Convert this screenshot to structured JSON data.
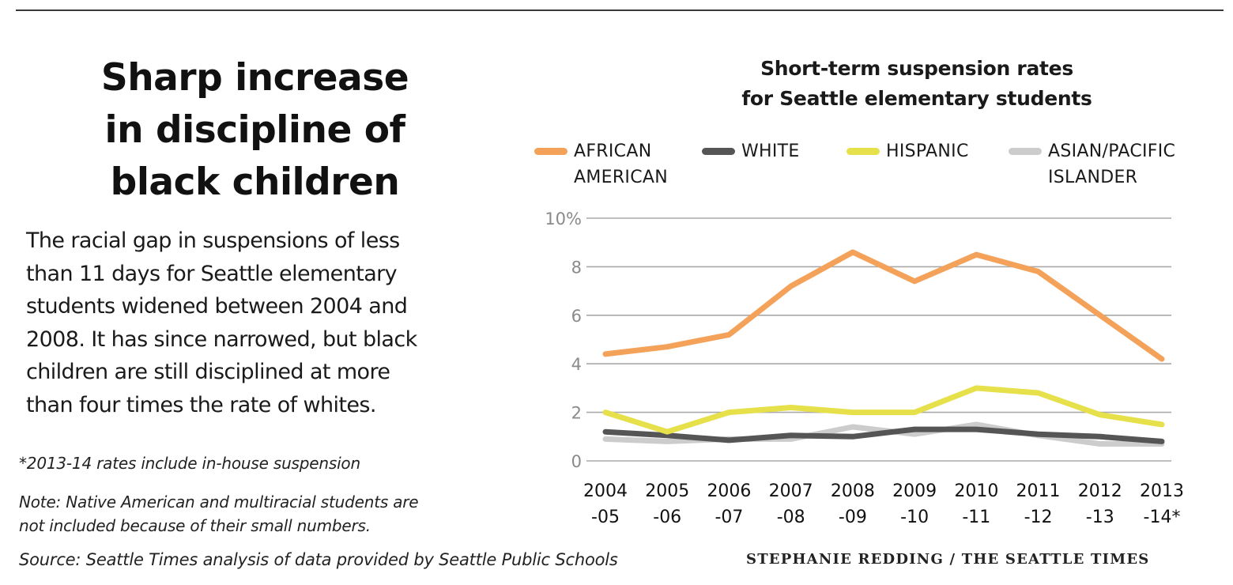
{
  "headline": [
    "Sharp increase",
    "in discipline of",
    "black children"
  ],
  "body": [
    "The racial gap in suspensions of less",
    "than 11 days for Seattle elementary",
    "students widened between 2004 and",
    "2008. It has since narrowed, but black",
    "children are still disciplined at more",
    "than four times the rate of whites."
  ],
  "footnote": "*2013-14 rates include in-house suspension",
  "note": [
    "Note: Native American and multiracial students are",
    "not included because of their small numbers."
  ],
  "source": "Source: Seattle Times analysis of data provided by Seattle Public Schools",
  "credit": "STEPHANIE REDDING / THE SEATTLE TIMES",
  "chart_data": {
    "type": "line",
    "title": [
      "Short-term suspension rates",
      "for Seattle elementary students"
    ],
    "categories": [
      [
        "2004",
        "-05"
      ],
      [
        "2005",
        "-06"
      ],
      [
        "2006",
        "-07"
      ],
      [
        "2007",
        "-08"
      ],
      [
        "2008",
        "-09"
      ],
      [
        "2009",
        "-10"
      ],
      [
        "2010",
        "-11"
      ],
      [
        "2011",
        "-12"
      ],
      [
        "2012",
        "-13"
      ],
      [
        "2013",
        "-14*"
      ]
    ],
    "y_ticks": [
      "10%",
      "8",
      "6",
      "4",
      "2",
      "0"
    ],
    "ylim": [
      0,
      10
    ],
    "grid": true,
    "legend_position": "top",
    "series": [
      {
        "name": [
          "AFRICAN",
          "AMERICAN"
        ],
        "color": "#f4a25a",
        "values": [
          4.4,
          4.7,
          5.2,
          7.2,
          8.6,
          7.4,
          8.5,
          7.8,
          6.0,
          4.2
        ]
      },
      {
        "name": [
          "WHITE"
        ],
        "color": "#555555",
        "values": [
          1.2,
          1.05,
          0.85,
          1.05,
          1.0,
          1.3,
          1.3,
          1.1,
          1.0,
          0.8
        ]
      },
      {
        "name": [
          "HISPANIC"
        ],
        "color": "#e6e04a",
        "values": [
          2.0,
          1.2,
          2.0,
          2.2,
          2.0,
          2.0,
          3.0,
          2.8,
          1.9,
          1.5
        ]
      },
      {
        "name": [
          "ASIAN/PACIFIC",
          "ISLANDER"
        ],
        "color": "#cccccc",
        "values": [
          0.9,
          0.8,
          0.9,
          0.9,
          1.4,
          1.1,
          1.5,
          1.05,
          0.7,
          0.7
        ]
      }
    ]
  }
}
